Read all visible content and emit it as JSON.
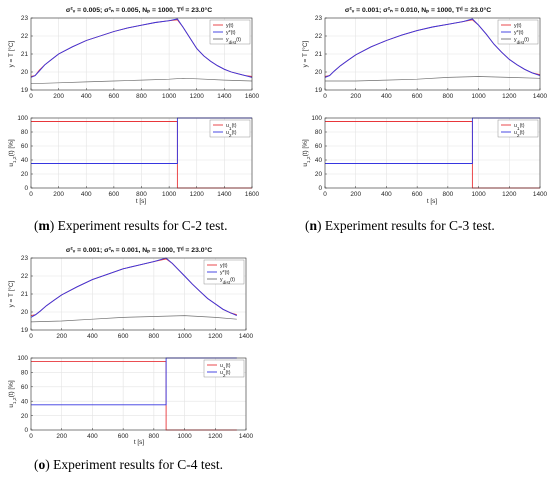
{
  "figure": {
    "panels": [
      {
        "id": "m",
        "caption": {
          "label": "m",
          "text": "Experiment results for C-2 test."
        },
        "title": "σ²ᵥ = 0.005; σ²ₙ = 0.005, Nₚ = 1000, Tᵈ = 23.0°C"
      },
      {
        "id": "n",
        "caption": {
          "label": "n",
          "text": "Experiment results for C-3 test."
        },
        "title": "σ²ᵥ = 0.001; σ²ₙ = 0.010, Nₚ = 1000, Tᵈ = 23.0°C"
      },
      {
        "id": "o",
        "caption": {
          "label": "o",
          "text": "Experiment results for C-4 test."
        },
        "title": "σ²ᵥ = 0.001; σ²ₙ = 0.001, Nₚ = 1000, Tᵈ = 23.0°C"
      }
    ],
    "colors": {
      "y": "#e8363a",
      "ystar": "#3636e0",
      "ydist": "#707070",
      "u1": "#e8363a",
      "u2": "#3636e0"
    }
  },
  "chart_data": [
    {
      "panel": "m",
      "type": "line",
      "title": "σ²ᵥ = 0.005; σ²ₙ = 0.005, Nₚ = 1000, Tᵈ = 23.0°C",
      "subplots": [
        {
          "ylabel": "y = T [°C]",
          "xlabel": "",
          "xlim": [
            0,
            1600
          ],
          "ylim": [
            19,
            23
          ],
          "xticks": [
            0,
            200,
            400,
            600,
            800,
            1000,
            1200,
            1400,
            1600
          ],
          "yticks": [
            19,
            20,
            21,
            22,
            23
          ],
          "legend": [
            "y(t)",
            "y*(t)",
            "y_dist(t)"
          ],
          "legend_position": "top-right",
          "grid": true,
          "series": [
            {
              "name": "y(t)",
              "color": "#e8363a",
              "x": [
                0,
                30,
                60,
                100,
                150,
                200,
                300,
                400,
                500,
                600,
                700,
                800,
                900,
                1000,
                1060,
                1100,
                1150,
                1200,
                1250,
                1300,
                1350,
                1400,
                1450,
                1500,
                1550,
                1600
              ],
              "y": [
                19.75,
                19.8,
                20.1,
                20.4,
                20.7,
                21.0,
                21.4,
                21.75,
                22.0,
                22.25,
                22.45,
                22.6,
                22.75,
                22.85,
                22.9,
                22.5,
                21.9,
                21.3,
                20.9,
                20.6,
                20.35,
                20.15,
                20.0,
                19.9,
                19.8,
                19.75
              ]
            },
            {
              "name": "y*(t)",
              "color": "#3636e0",
              "x": [
                0,
                30,
                60,
                100,
                150,
                200,
                300,
                400,
                500,
                600,
                700,
                800,
                900,
                1000,
                1060,
                1100,
                1150,
                1200,
                1250,
                1300,
                1350,
                1400,
                1450,
                1500,
                1550,
                1600
              ],
              "y": [
                19.7,
                19.8,
                20.05,
                20.4,
                20.7,
                21.0,
                21.4,
                21.75,
                22.0,
                22.25,
                22.45,
                22.6,
                22.75,
                22.85,
                22.95,
                22.5,
                21.9,
                21.3,
                20.9,
                20.6,
                20.35,
                20.15,
                20.0,
                19.9,
                19.8,
                19.7
              ]
            },
            {
              "name": "y_dist(t)",
              "color": "#707070",
              "x": [
                0,
                200,
                400,
                600,
                800,
                1000,
                1100,
                1200,
                1400,
                1600
              ],
              "y": [
                19.35,
                19.4,
                19.45,
                19.5,
                19.55,
                19.6,
                19.65,
                19.62,
                19.55,
                19.5
              ]
            }
          ]
        },
        {
          "ylabel": "u_1,2(t) [%]",
          "xlabel": "t [s]",
          "xlim": [
            0,
            1600
          ],
          "ylim": [
            0,
            100
          ],
          "xticks": [
            0,
            200,
            400,
            600,
            800,
            1000,
            1200,
            1400,
            1600
          ],
          "yticks": [
            0,
            20,
            40,
            60,
            80,
            100
          ],
          "legend": [
            "u_1(t)",
            "u_2(t)"
          ],
          "legend_position": "top-right",
          "grid": true,
          "series": [
            {
              "name": "u_1(t)",
              "color": "#e8363a",
              "x": [
                0,
                1060,
                1060,
                1600
              ],
              "y": [
                95,
                95,
                0,
                0
              ]
            },
            {
              "name": "u_2(t)",
              "color": "#3636e0",
              "x": [
                0,
                1060,
                1060,
                1600
              ],
              "y": [
                35,
                35,
                100,
                100
              ]
            }
          ]
        }
      ]
    },
    {
      "panel": "n",
      "type": "line",
      "title": "σ²ᵥ = 0.001; σ²ₙ = 0.010, Nₚ = 1000, Tᵈ = 23.0°C",
      "subplots": [
        {
          "ylabel": "y = T [°C]",
          "xlabel": "",
          "xlim": [
            0,
            1400
          ],
          "ylim": [
            19,
            23
          ],
          "xticks": [
            0,
            200,
            400,
            600,
            800,
            1000,
            1200,
            1400
          ],
          "yticks": [
            19,
            20,
            21,
            22,
            23
          ],
          "legend": [
            "y(t)",
            "y*(t)",
            "y_dist(t)"
          ],
          "legend_position": "top-right",
          "grid": true,
          "series": [
            {
              "name": "y(t)",
              "color": "#e8363a",
              "x": [
                0,
                30,
                60,
                100,
                150,
                200,
                300,
                400,
                500,
                600,
                700,
                800,
                900,
                960,
                1000,
                1050,
                1100,
                1150,
                1200,
                1250,
                1300,
                1350,
                1400
              ],
              "y": [
                19.75,
                19.8,
                20.05,
                20.35,
                20.65,
                20.95,
                21.4,
                21.75,
                22.05,
                22.3,
                22.5,
                22.65,
                22.8,
                22.9,
                22.6,
                22.1,
                21.55,
                21.1,
                20.7,
                20.4,
                20.15,
                19.95,
                19.85
              ]
            },
            {
              "name": "y*(t)",
              "color": "#3636e0",
              "x": [
                0,
                30,
                60,
                100,
                150,
                200,
                300,
                400,
                500,
                600,
                700,
                800,
                900,
                960,
                1000,
                1050,
                1100,
                1150,
                1200,
                1250,
                1300,
                1350,
                1400
              ],
              "y": [
                19.7,
                19.8,
                20.05,
                20.35,
                20.65,
                20.95,
                21.4,
                21.75,
                22.05,
                22.3,
                22.5,
                22.65,
                22.8,
                22.95,
                22.6,
                22.1,
                21.55,
                21.1,
                20.7,
                20.4,
                20.15,
                19.95,
                19.8
              ]
            },
            {
              "name": "y_dist(t)",
              "color": "#707070",
              "x": [
                0,
                200,
                400,
                600,
                800,
                1000,
                1200,
                1400
              ],
              "y": [
                19.5,
                19.5,
                19.55,
                19.6,
                19.7,
                19.75,
                19.7,
                19.65
              ]
            }
          ]
        },
        {
          "ylabel": "u_1,2(t) [%]",
          "xlabel": "t [s]",
          "xlim": [
            0,
            1400
          ],
          "ylim": [
            0,
            100
          ],
          "xticks": [
            0,
            200,
            400,
            600,
            800,
            1000,
            1200,
            1400
          ],
          "yticks": [
            0,
            20,
            40,
            60,
            80,
            100
          ],
          "legend": [
            "u_1(t)",
            "u_2(t)"
          ],
          "legend_position": "top-right",
          "grid": true,
          "series": [
            {
              "name": "u_1(t)",
              "color": "#e8363a",
              "x": [
                0,
                960,
                960,
                1400
              ],
              "y": [
                95,
                95,
                0,
                0
              ]
            },
            {
              "name": "u_2(t)",
              "color": "#3636e0",
              "x": [
                0,
                960,
                960,
                1400
              ],
              "y": [
                35,
                35,
                100,
                100
              ]
            }
          ]
        }
      ]
    },
    {
      "panel": "o",
      "type": "line",
      "title": "σ²ᵥ = 0.001; σ²ₙ = 0.001, Nₚ = 1000, Tᵈ = 23.0°C",
      "subplots": [
        {
          "ylabel": "y = T [°C]",
          "xlabel": "",
          "xlim": [
            0,
            1400
          ],
          "ylim": [
            19,
            23
          ],
          "xticks": [
            0,
            200,
            400,
            600,
            800,
            1000,
            1200,
            1400
          ],
          "yticks": [
            19,
            20,
            21,
            22,
            23
          ],
          "legend": [
            "y(t)",
            "y*(t)",
            "y_dist(t)"
          ],
          "legend_position": "top-right",
          "grid": true,
          "series": [
            {
              "name": "y(t)",
              "color": "#e8363a",
              "x": [
                0,
                30,
                60,
                100,
                150,
                200,
                300,
                400,
                500,
                600,
                700,
                800,
                880,
                920,
                960,
                1000,
                1050,
                1100,
                1150,
                1200,
                1250,
                1300,
                1340
              ],
              "y": [
                19.8,
                19.85,
                20.05,
                20.35,
                20.65,
                20.95,
                21.4,
                21.8,
                22.1,
                22.4,
                22.6,
                22.8,
                22.95,
                22.7,
                22.35,
                22.0,
                21.55,
                21.15,
                20.75,
                20.45,
                20.15,
                19.95,
                19.85
              ]
            },
            {
              "name": "y*(t)",
              "color": "#3636e0",
              "x": [
                0,
                30,
                60,
                100,
                150,
                200,
                300,
                400,
                500,
                600,
                700,
                800,
                880,
                920,
                960,
                1000,
                1050,
                1100,
                1150,
                1200,
                1250,
                1300,
                1340
              ],
              "y": [
                19.7,
                19.85,
                20.05,
                20.35,
                20.65,
                20.95,
                21.4,
                21.8,
                22.1,
                22.4,
                22.6,
                22.8,
                23.0,
                22.7,
                22.35,
                22.0,
                21.55,
                21.15,
                20.75,
                20.45,
                20.15,
                19.95,
                19.8
              ]
            },
            {
              "name": "y_dist(t)",
              "color": "#707070",
              "x": [
                0,
                200,
                400,
                600,
                800,
                1000,
                1200,
                1340
              ],
              "y": [
                19.45,
                19.5,
                19.6,
                19.7,
                19.75,
                19.8,
                19.7,
                19.6
              ]
            }
          ]
        },
        {
          "ylabel": "u_1,2(t) [%]",
          "xlabel": "t [s]",
          "xlim": [
            0,
            1400
          ],
          "ylim": [
            0,
            100
          ],
          "xticks": [
            0,
            200,
            400,
            600,
            800,
            1000,
            1200,
            1400
          ],
          "yticks": [
            0,
            20,
            40,
            60,
            80,
            100
          ],
          "legend": [
            "u_1(t)",
            "u_2(t)"
          ],
          "legend_position": "top-right",
          "grid": true,
          "series": [
            {
              "name": "u_1(t)",
              "color": "#e8363a",
              "x": [
                0,
                880,
                880,
                1340
              ],
              "y": [
                95,
                95,
                0,
                0
              ]
            },
            {
              "name": "u_2(t)",
              "color": "#3636e0",
              "x": [
                0,
                880,
                880,
                1340
              ],
              "y": [
                35,
                35,
                100,
                100
              ]
            }
          ]
        }
      ]
    }
  ]
}
